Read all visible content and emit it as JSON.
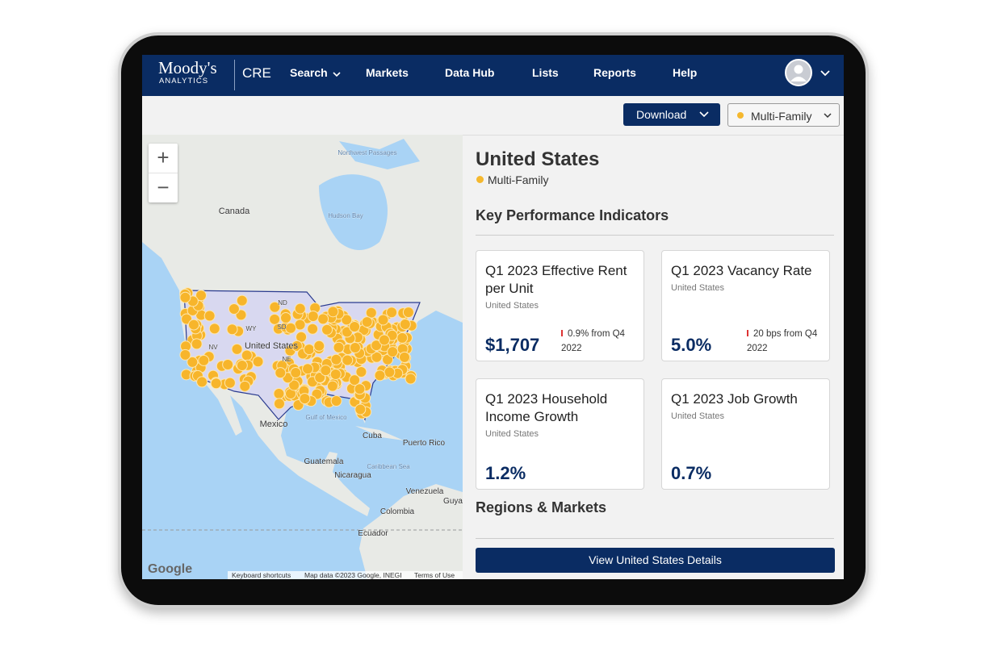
{
  "nav": {
    "logo_top": "Moody's",
    "logo_bottom": "ANALYTICS",
    "product": "CRE",
    "items": [
      "Search",
      "Markets",
      "Data Hub",
      "Lists",
      "Reports",
      "Help"
    ]
  },
  "toolbar": {
    "download": "Download",
    "filter": "Multi-Family"
  },
  "map": {
    "labels": [
      "Canada",
      "Hudson Bay",
      "Northwest Passages",
      "ND",
      "SD",
      "WY",
      "NV",
      "NE",
      "United States",
      "Mexico",
      "Gulf of Mexico",
      "Cuba",
      "Puerto Rico",
      "Guatemala",
      "Nicaragua",
      "Caribbean Sea",
      "Venezuela",
      "Colombia",
      "Ecuador",
      "Guya"
    ],
    "zoom_in": "+",
    "zoom_out": "−",
    "attribution": {
      "logo": "Google",
      "shortcuts": "Keyboard shortcuts",
      "data": "Map data ©2023 Google, INEGI",
      "terms": "Terms of Use"
    }
  },
  "panel": {
    "title": "United States",
    "legend": "Multi-Family",
    "kpi_heading": "Key Performance Indicators",
    "cards": [
      {
        "title": "Q1 2023 Effective Rent per Unit",
        "region": "United States",
        "value": "$1,707",
        "change": "0.9% from Q4 2022"
      },
      {
        "title": "Q1 2023 Vacancy Rate",
        "region": "United States",
        "value": "5.0%",
        "change": "20 bps from Q4 2022"
      },
      {
        "title": "Q1 2023 Household Income Growth",
        "region": "United States",
        "value": "1.2%"
      },
      {
        "title": "Q1 2023 Job Growth",
        "region": "United States",
        "value": "0.7%"
      }
    ],
    "regions_heading": "Regions & Markets",
    "button": "View United States Details"
  }
}
